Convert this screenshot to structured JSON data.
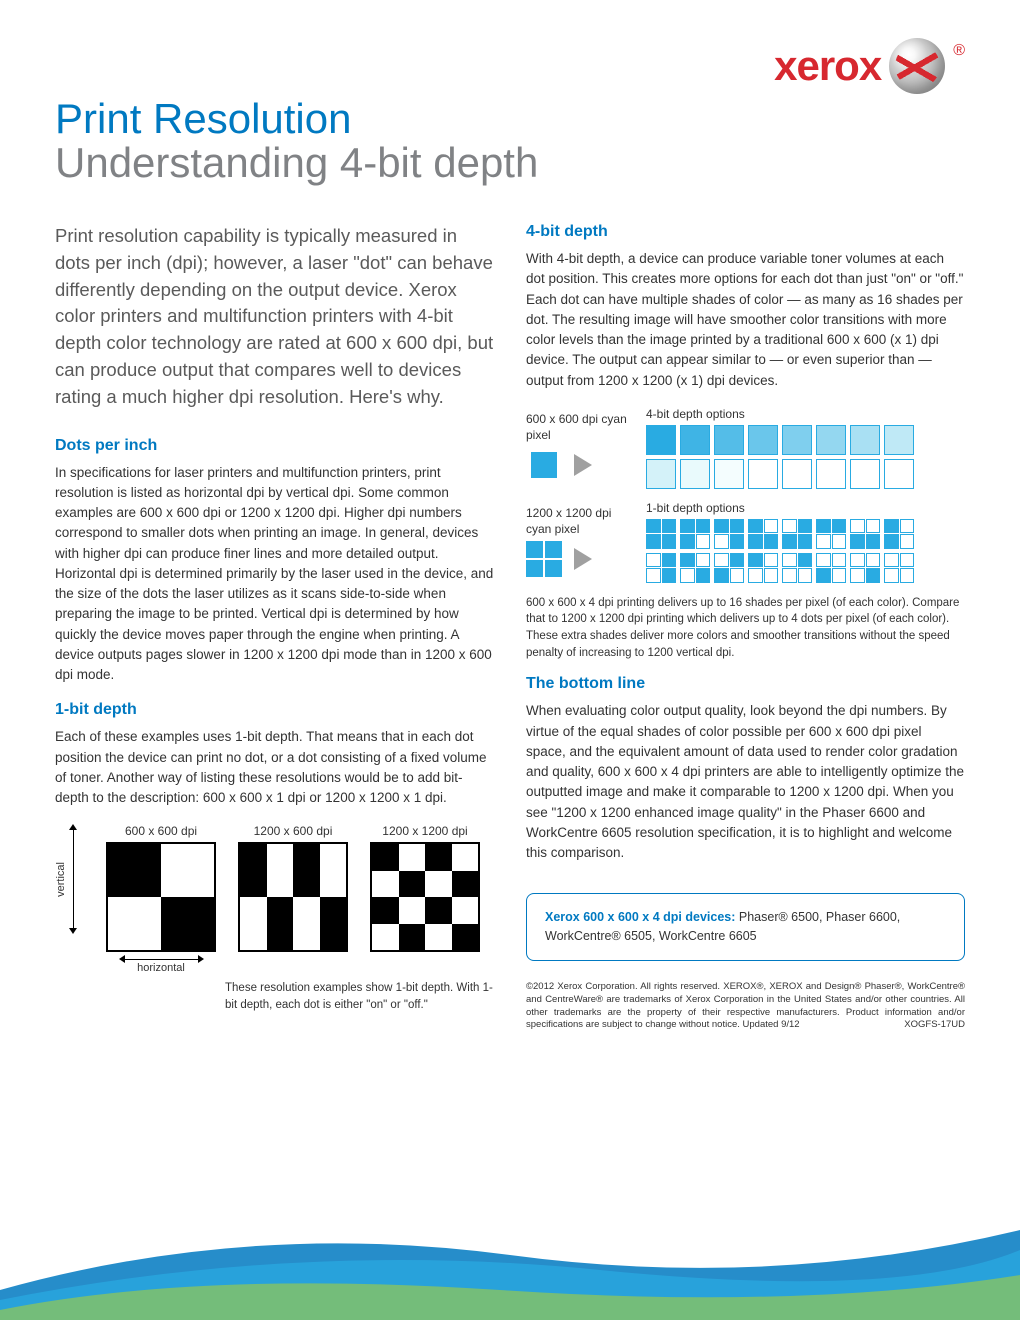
{
  "brand": {
    "name": "xerox",
    "reg": "®",
    "color": "#d7282f"
  },
  "title": "Print Resolution",
  "subtitle": "Understanding 4-bit depth",
  "intro": "Print resolution capability is typically measured in dots per inch (dpi); however, a laser \"dot\" can behave differently depending on the output device. Xerox color printers and multifunction printers with 4-bit depth color technology are rated at 600 x 600 dpi, but can produce output that compares well to devices rating a much higher dpi resolution. Here's why.",
  "sections": {
    "dpi": {
      "head": "Dots per inch",
      "body": "In specifications for laser printers and multifunction printers, print resolution is listed as horizontal dpi by vertical dpi. Some common examples are 600 x 600 dpi or 1200 x 1200 dpi. Higher dpi numbers correspond to smaller dots when printing an image. In general, devices with higher dpi can produce finer lines and more detailed output. Horizontal dpi is determined primarily by the laser used in the device, and the size of the dots the laser utilizes as it scans side-to-side when preparing the image to be printed. Vertical dpi is determined by how quickly the device moves paper through the engine when printing. A device outputs pages slower in 1200 x 1200 dpi mode than in 1200 x 600 dpi mode."
    },
    "onebit": {
      "head": "1-bit depth",
      "body": "Each of these examples uses 1-bit depth. That means that in each dot position the device can print no dot, or a dot consisting of a fixed volume of toner. Another way of listing these resolutions would be to add bit-depth to the description: 600 x 600 x 1 dpi or 1200 x 1200 x 1 dpi."
    },
    "fourbit": {
      "head": "4-bit depth",
      "body": "With 4-bit depth, a device can produce variable toner volumes at each dot position. This creates more options for each dot than just \"on\" or \"off.\"  Each dot can have multiple shades of color — as many as 16 shades per dot. The resulting image will have smoother color transitions with more color levels than the image printed by a traditional 600 x 600 (x 1) dpi device. The output can appear similar to — or even superior than — output from 1200 x 1200 (x 1) dpi devices."
    },
    "bottom": {
      "head": "The bottom line",
      "body": "When evaluating color output quality, look beyond the dpi numbers. By virtue of the equal shades of color possible per 600 x 600 dpi pixel space, and the equivalent amount of data used to render color gradation and quality, 600 x 600 x 4 dpi printers are able to intelligently optimize the outputted image and make it comparable to 1200 x 1200 dpi.  When you see \"1200 x 1200 enhanced image quality\" in the Phaser 6600 and WorkCentre 6605 resolution specification, it is to highlight and welcome this comparison."
    }
  },
  "grid_labels": {
    "g600": "600 x 600 dpi",
    "g1200x600": "1200 x 600 dpi",
    "g1200": "1200 x 1200 dpi",
    "vertical": "vertical",
    "horizontal": "horizontal"
  },
  "grid_caption": "These resolution examples show 1-bit depth. With 1-bit depth, each dot is either \"on\" or \"off.\"",
  "bit_demo": {
    "label_600": "600 x 600 dpi cyan pixel",
    "label_1200": "1200 x 1200 dpi cyan pixel",
    "options_4bit": "4-bit depth options",
    "options_1bit": "1-bit depth options",
    "shades_4bit": [
      "#29abe2",
      "#3fb4e5",
      "#54bde8",
      "#6ac6eb",
      "#7fcfee",
      "#94d7f0",
      "#a9e0f3",
      "#bfe9f6",
      "#d4f2f9",
      "#e9fafc",
      "#f4fdfe",
      "#ffffff",
      "#ffffff",
      "#ffffff",
      "#ffffff",
      "#ffffff"
    ],
    "patterns_1bit": [
      [
        1,
        1,
        1,
        1
      ],
      [
        1,
        1,
        1,
        0
      ],
      [
        1,
        1,
        0,
        1
      ],
      [
        1,
        0,
        1,
        1
      ],
      [
        0,
        1,
        1,
        1
      ],
      [
        1,
        1,
        0,
        0
      ],
      [
        0,
        0,
        1,
        1
      ],
      [
        1,
        0,
        1,
        0
      ],
      [
        0,
        1,
        0,
        1
      ],
      [
        1,
        0,
        0,
        1
      ],
      [
        0,
        1,
        1,
        0
      ],
      [
        1,
        0,
        0,
        0
      ],
      [
        0,
        1,
        0,
        0
      ],
      [
        0,
        0,
        1,
        0
      ],
      [
        0,
        0,
        0,
        1
      ],
      [
        0,
        0,
        0,
        0
      ]
    ],
    "caption": "600 x 600 x 4 dpi printing delivers up to 16 shades per pixel (of each color). Compare that to 1200 x 1200 dpi printing which delivers up to 4 dots per pixel (of each color). These extra shades deliver more colors and smoother transitions without the speed penalty of increasing to 1200 vertical dpi."
  },
  "callout": {
    "label": "Xerox 600 x 600 x 4 dpi devices:",
    "text": "  Phaser® 6500, Phaser 6600, WorkCentre® 6505, WorkCentre 6605"
  },
  "copyright": "©2012 Xerox Corporation. All rights reserved. XEROX®, XEROX and Design® Phaser®, WorkCentre® and CentreWare® are trademarks of Xerox Corporation in the United States and/or other countries.  All other trademarks are the property of their respective manufacturers. Product information and/or specifications are subject to change without notice. Updated 9/12",
  "doccode": "XOGFS-17UD",
  "colors": {
    "cyan": "#29abe2",
    "blue": "#0079c1",
    "red": "#d7282f",
    "grey": "#808285"
  }
}
